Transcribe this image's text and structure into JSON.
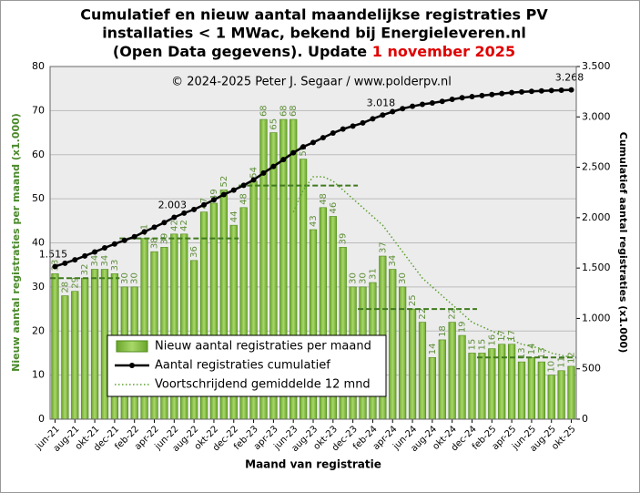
{
  "chart_data": {
    "type": "combo",
    "title": [
      "Cumulatief en nieuw aantal maandelijkse registraties PV",
      "installaties < 1 MWac, bekend bij Energieleveren.nl",
      "(Open Data gegevens). Update "
    ],
    "update_date": "1 november 2025",
    "subtitle": "© 2024-2025 Peter J. Segaar / www.polderpv.nl",
    "x_label": "Maand van registratie",
    "y_label": "Nieuw aantal registraties per maand (x1.000)",
    "y2_label": "Cumulatief aantal registraties (x1.000)",
    "categories": [
      "jun-21",
      null,
      "aug-21",
      null,
      "okt-21",
      null,
      "dec-21",
      null,
      "feb-22",
      null,
      "apr-22",
      null,
      "jun-22",
      null,
      "aug-22",
      null,
      "okt-22",
      null,
      "dec-22",
      null,
      "feb-23",
      null,
      "apr-23",
      null,
      "jun-23",
      null,
      "aug-23",
      null,
      "okt-23",
      null,
      "dec-23",
      null,
      "feb-24",
      null,
      "apr-24",
      null,
      "jun-24",
      null,
      "aug-24",
      null,
      "okt-24",
      null,
      "dec-24",
      null,
      "feb-25",
      null,
      "apr-25",
      null,
      "jun-25",
      null,
      "aug-25",
      null,
      "okt-25"
    ],
    "ylim": [
      0,
      80
    ],
    "yticks": [
      0,
      10,
      20,
      30,
      40,
      50,
      60,
      70,
      80
    ],
    "y2lim": [
      0,
      3500
    ],
    "y2ticks": [
      0,
      500,
      {
        "value": 1000,
        "label": "1.000"
      },
      {
        "value": 1500,
        "label": "1.500"
      },
      {
        "value": 2000,
        "label": "2.000"
      },
      {
        "value": 2500,
        "label": "2.500"
      },
      {
        "value": 3000,
        "label": "3.000"
      },
      {
        "value": 3500,
        "label": "3.500"
      }
    ],
    "grid": true,
    "legend": "lower-left",
    "series": [
      {
        "name": "Nieuw aantal registraties per maand",
        "type": "bar",
        "color": "#8cc63f",
        "values": [
          33,
          28,
          29,
          32,
          34,
          34,
          33,
          30,
          30,
          41,
          38,
          39,
          42,
          42,
          36,
          47,
          49,
          52,
          44,
          48,
          54,
          68,
          65,
          68,
          68,
          59,
          43,
          48,
          46,
          39,
          30,
          30,
          31,
          37,
          34,
          30,
          25,
          22,
          14,
          18,
          22,
          19,
          15,
          15,
          16,
          17,
          17,
          13,
          14,
          13,
          10,
          11,
          12
        ]
      },
      {
        "name": "Aantal registraties cumulatief",
        "type": "line",
        "axis": "y2",
        "color": "#000000",
        "values": [
          1515,
          1548,
          1582,
          1620,
          1660,
          1700,
          1739,
          1775,
          1811,
          1860,
          1905,
          1951,
          2003,
          2045,
          2081,
          2128,
          2177,
          2229,
          2273,
          2321,
          2375,
          2443,
          2508,
          2576,
          2644,
          2703,
          2746,
          2794,
          2840,
          2879,
          2909,
          2940,
          2981,
          3018,
          3052,
          3082,
          3105,
          3125,
          3138,
          3154,
          3174,
          3190,
          3201,
          3212,
          3222,
          3232,
          3241,
          3248,
          3254,
          3258,
          3262,
          3265,
          3268
        ],
        "value_labels": [
          "1.515",
          null,
          null,
          null,
          null,
          null,
          null,
          null,
          null,
          null,
          null,
          null,
          "2.003",
          null,
          null,
          null,
          null,
          null,
          null,
          null,
          null,
          null,
          null,
          null,
          null,
          null,
          null,
          null,
          null,
          null,
          null,
          null,
          null,
          "3.018",
          null,
          null,
          null,
          null,
          null,
          null,
          null,
          null,
          null,
          null,
          null,
          null,
          null,
          null,
          null,
          null,
          null,
          null,
          "3.268"
        ]
      },
      {
        "name": "Voortschrijdend gemiddelde 12 mnd",
        "type": "dotted",
        "color": "#5aa02c",
        "values": [
          null,
          null,
          null,
          null,
          null,
          null,
          null,
          null,
          null,
          null,
          null,
          null,
          null,
          null,
          null,
          null,
          null,
          null,
          null,
          null,
          null,
          null,
          null,
          null,
          47,
          52,
          55,
          55,
          54,
          52,
          50,
          48,
          46,
          44,
          41,
          38,
          35,
          32,
          30,
          28,
          26,
          24,
          22,
          21,
          20,
          19,
          18,
          17,
          16.5,
          16,
          15,
          14.5,
          14
        ]
      }
    ],
    "annual_averages": [
      {
        "start": 0,
        "end": 6,
        "value": 32
      },
      {
        "start": 7,
        "end": 18,
        "value": 41
      },
      {
        "start": 19,
        "end": 30,
        "value": 53
      },
      {
        "start": 31,
        "end": 42,
        "value": 25
      },
      {
        "start": 43,
        "end": 52,
        "value": 14
      }
    ],
    "annual_average_color": "#3f7a1e"
  }
}
